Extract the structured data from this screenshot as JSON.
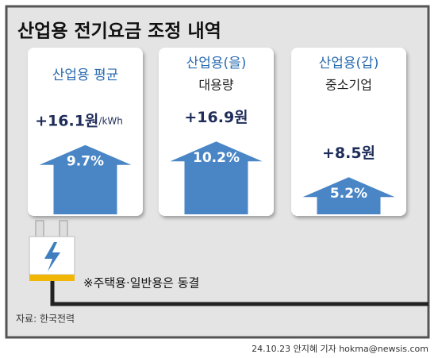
{
  "chart_data": {
    "type": "bar",
    "title": "산업용 전기요금 조정 내역",
    "categories": [
      "산업용 평균",
      "산업용(을)",
      "산업용(갑)"
    ],
    "sublabels": [
      null,
      "대용량",
      "중소기업"
    ],
    "increases": [
      16.1,
      16.9,
      8.5
    ],
    "increase_labels": [
      "+16.1원",
      "+16.9원",
      "+8.5원"
    ],
    "unit": "/kWh",
    "values": [
      9.7,
      10.2,
      5.2
    ],
    "value_labels": [
      "9.7%",
      "10.2%",
      "5.2%"
    ],
    "color": "#4a86c5",
    "note": "※주택용·일반용은 동결",
    "source": "자료: 한국전력",
    "credit": "24.10.23 안지혜 기자 hokma@newsis.com"
  }
}
